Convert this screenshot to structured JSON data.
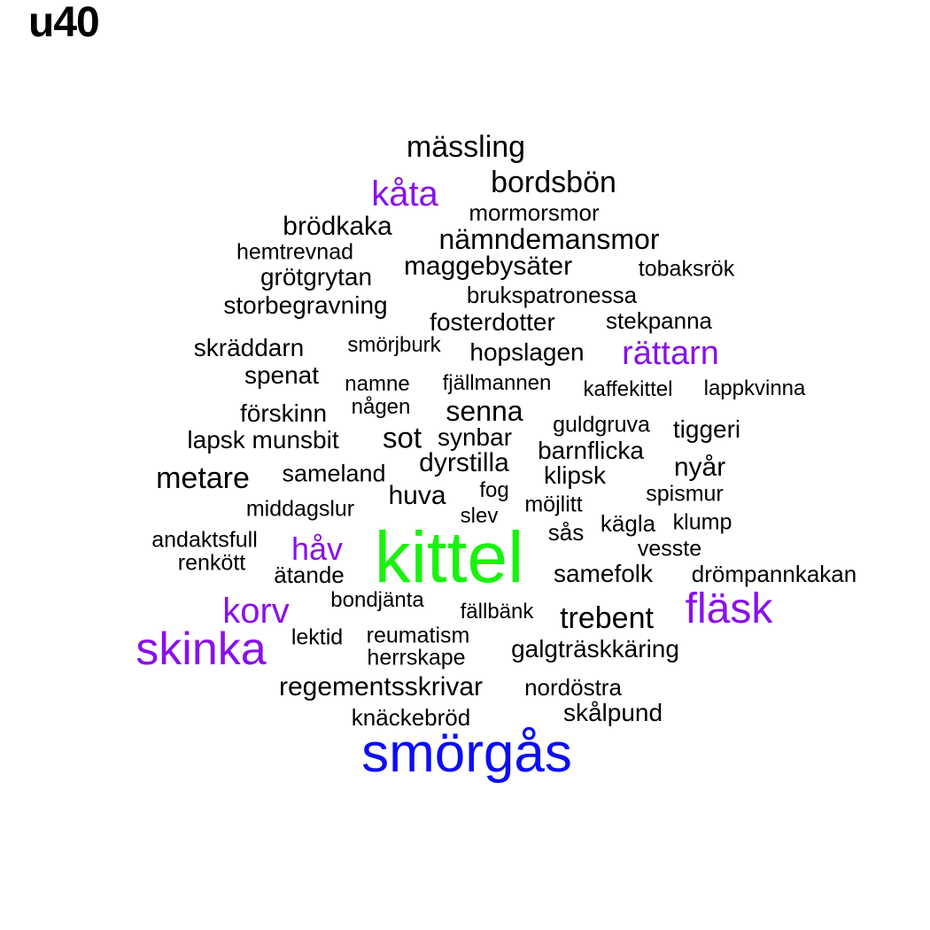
{
  "title": "u40",
  "colors": {
    "black": "#000000",
    "purple": "#8a11ea",
    "green": "#19f20f",
    "blue": "#0d0df5"
  },
  "words": [
    {
      "text": "mässling",
      "color": "black"
    },
    {
      "text": "bordsbön",
      "color": "black"
    },
    {
      "text": "kåta",
      "color": "purple"
    },
    {
      "text": "mormorsmor",
      "color": "black"
    },
    {
      "text": "brödkaka",
      "color": "black"
    },
    {
      "text": "nämndemansmor",
      "color": "black"
    },
    {
      "text": "hemtrevnad",
      "color": "black"
    },
    {
      "text": "maggebysäter",
      "color": "black"
    },
    {
      "text": "tobaksrök",
      "color": "black"
    },
    {
      "text": "grötgrytan",
      "color": "black"
    },
    {
      "text": "brukspatronessa",
      "color": "black"
    },
    {
      "text": "storbegravning",
      "color": "black"
    },
    {
      "text": "fosterdotter",
      "color": "black"
    },
    {
      "text": "stekpanna",
      "color": "black"
    },
    {
      "text": "skräddarn",
      "color": "black"
    },
    {
      "text": "smörjburk",
      "color": "black"
    },
    {
      "text": "hopslagen",
      "color": "black"
    },
    {
      "text": "rättarn",
      "color": "purple"
    },
    {
      "text": "spenat",
      "color": "black"
    },
    {
      "text": "namne",
      "color": "black"
    },
    {
      "text": "fjällmannen",
      "color": "black"
    },
    {
      "text": "kaffekittel",
      "color": "black"
    },
    {
      "text": "lappkvinna",
      "color": "black"
    },
    {
      "text": "någen",
      "color": "black"
    },
    {
      "text": "förskinn",
      "color": "black"
    },
    {
      "text": "senna",
      "color": "black"
    },
    {
      "text": "guldgruva",
      "color": "black"
    },
    {
      "text": "tiggeri",
      "color": "black"
    },
    {
      "text": "lapsk munsbit",
      "color": "black"
    },
    {
      "text": "sot",
      "color": "black"
    },
    {
      "text": "synbar",
      "color": "black"
    },
    {
      "text": "barnflicka",
      "color": "black"
    },
    {
      "text": "dyrstilla",
      "color": "black"
    },
    {
      "text": "nyår",
      "color": "black"
    },
    {
      "text": "metare",
      "color": "black"
    },
    {
      "text": "sameland",
      "color": "black"
    },
    {
      "text": "klipsk",
      "color": "black"
    },
    {
      "text": "fog",
      "color": "black"
    },
    {
      "text": "huva",
      "color": "black"
    },
    {
      "text": "spismur",
      "color": "black"
    },
    {
      "text": "middagslur",
      "color": "black"
    },
    {
      "text": "möjlitt",
      "color": "black"
    },
    {
      "text": "slev",
      "color": "black"
    },
    {
      "text": "kägla",
      "color": "black"
    },
    {
      "text": "klump",
      "color": "black"
    },
    {
      "text": "andaktsfull",
      "color": "black"
    },
    {
      "text": "sås",
      "color": "black"
    },
    {
      "text": "håv",
      "color": "purple"
    },
    {
      "text": "vesste",
      "color": "black"
    },
    {
      "text": "renkött",
      "color": "black"
    },
    {
      "text": "kittel",
      "color": "green"
    },
    {
      "text": "ätande",
      "color": "black"
    },
    {
      "text": "samefolk",
      "color": "black"
    },
    {
      "text": "drömpannkakan",
      "color": "black"
    },
    {
      "text": "bondjänta",
      "color": "black"
    },
    {
      "text": "korv",
      "color": "purple"
    },
    {
      "text": "fällbänk",
      "color": "black"
    },
    {
      "text": "fläsk",
      "color": "purple"
    },
    {
      "text": "trebent",
      "color": "black"
    },
    {
      "text": "lektid",
      "color": "black"
    },
    {
      "text": "reumatism",
      "color": "black"
    },
    {
      "text": "skinka",
      "color": "purple"
    },
    {
      "text": "galgträskkäring",
      "color": "black"
    },
    {
      "text": "herrskape",
      "color": "black"
    },
    {
      "text": "regementsskrivar",
      "color": "black"
    },
    {
      "text": "nordöstra",
      "color": "black"
    },
    {
      "text": "skålpund",
      "color": "black"
    },
    {
      "text": "knäckebröd",
      "color": "black"
    },
    {
      "text": "smörgås",
      "color": "blue"
    }
  ]
}
